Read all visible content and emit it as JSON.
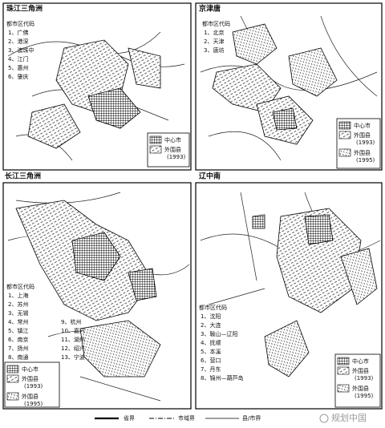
{
  "panels": [
    {
      "title": "珠江三角洲",
      "legend_title": "都市区代码",
      "codes": [
        "1、广佛",
        "2、港深",
        "3、澳珠中",
        "4、江门",
        "5、惠州",
        "6、肇庆"
      ],
      "key": [
        {
          "label": "中心市"
        },
        {
          "label": "外围县",
          "note": "(1993)"
        }
      ]
    },
    {
      "title": "京津唐",
      "legend_title": "都市区代码",
      "codes": [
        "1、北京",
        "2、天津",
        "3、唐坊"
      ],
      "key": [
        {
          "label": "中心市"
        },
        {
          "label": "外围县",
          "note": "(1993)"
        },
        {
          "label": "外围县",
          "note": "(1995)"
        }
      ]
    },
    {
      "title": "长江三角洲",
      "legend_title": "都市区代码",
      "codes": [
        "1、上海",
        "2、苏州",
        "3、无锡",
        "4、常州",
        "5、镇江",
        "6、南京",
        "7、扬州",
        "8、南通",
        "9、杭州",
        "10、嘉兴",
        "11、湖州",
        "12、绍兴",
        "13、宁波"
      ],
      "key": [
        {
          "label": "中心市"
        },
        {
          "label": "外围县",
          "note": "(1993)"
        },
        {
          "label": "外围县",
          "note": "(1995)"
        }
      ]
    },
    {
      "title": "辽中南",
      "legend_title": "都市区代码",
      "codes": [
        "1、沈阳",
        "2、大连",
        "3、鞍山—辽阳",
        "4、抚顺",
        "5、本溪",
        "6、营口",
        "7、丹东",
        "8、锦州—葫芦岛"
      ],
      "key": [
        {
          "label": "中心市"
        },
        {
          "label": "外围县",
          "note": "(1993)"
        },
        {
          "label": "外围县",
          "note": "(1995)"
        }
      ]
    }
  ],
  "footer": [
    "省界",
    "市域界",
    "县/市界"
  ],
  "watermark": "规划中国"
}
